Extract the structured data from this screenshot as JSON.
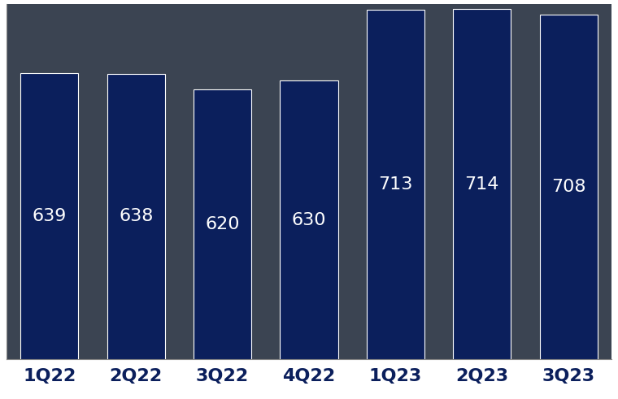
{
  "chart_data": {
    "type": "bar",
    "categories": [
      "1Q22",
      "2Q22",
      "3Q22",
      "4Q22",
      "1Q23",
      "2Q23",
      "3Q23"
    ],
    "values": [
      639,
      638,
      620,
      630,
      713,
      714,
      708
    ],
    "color": "#0b1f5c",
    "ylim": [
      304,
      720
    ],
    "yticks": [],
    "data_labels": true,
    "tick_labels": "x",
    "grid": false
  }
}
